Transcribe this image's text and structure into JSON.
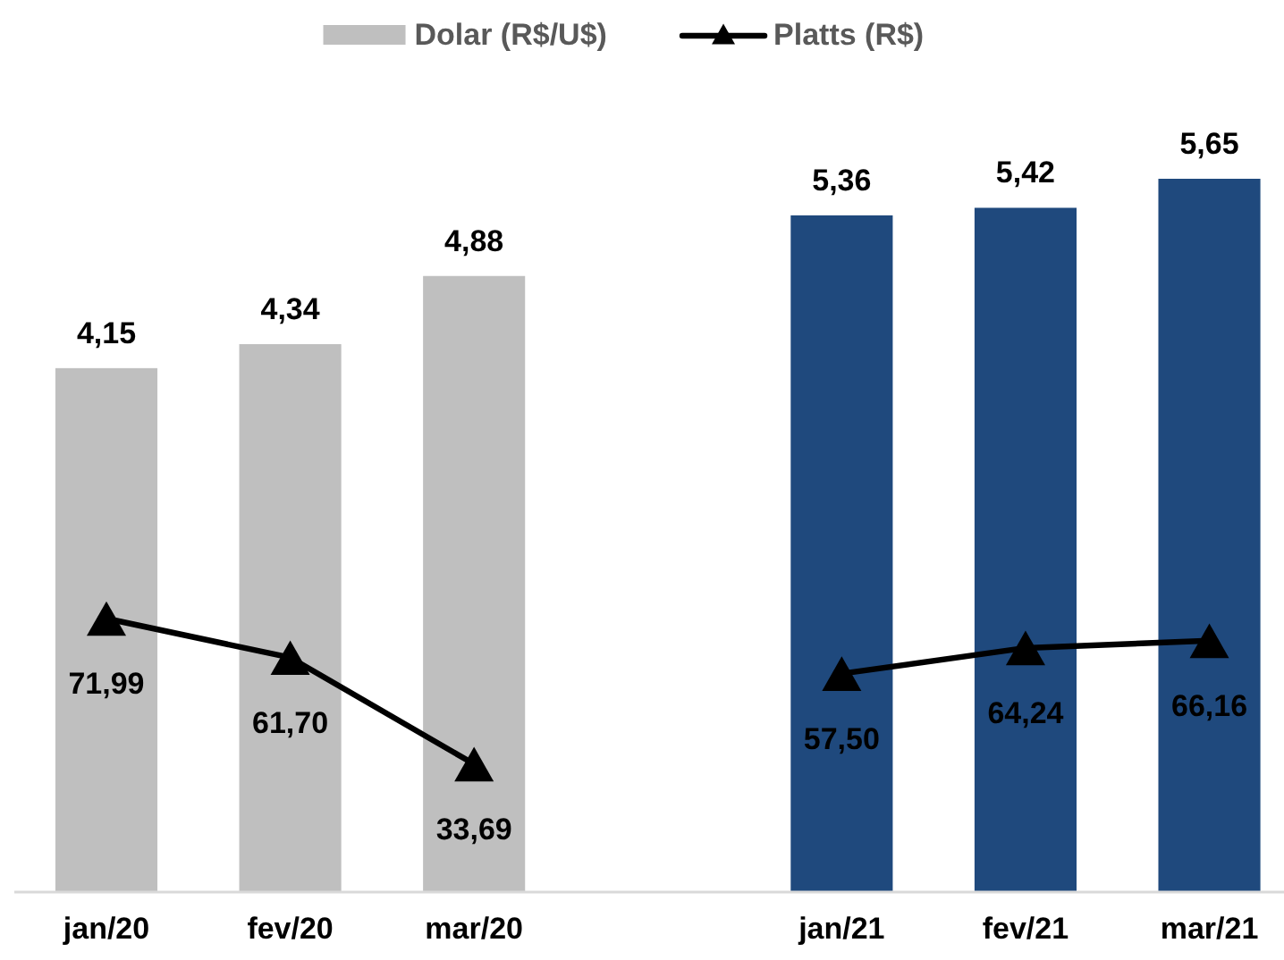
{
  "chart_data": {
    "type": "bar",
    "categories": [
      "jan/20",
      "fev/20",
      "mar/20",
      null,
      "jan/21",
      "fev/21",
      "mar/21"
    ],
    "series": [
      {
        "name": "Dolar (R$/U$)",
        "color": "#bfbfbf",
        "colors": [
          "#bfbfbf",
          "#bfbfbf",
          "#bfbfbf",
          null,
          "#1f497d",
          "#1f497d",
          "#1f497d"
        ],
        "values": [
          4.15,
          4.34,
          4.88,
          null,
          5.36,
          5.42,
          5.65
        ],
        "value_labels": [
          "4,15",
          "4,34",
          "4,88",
          null,
          "5,36",
          "5,42",
          "5,65"
        ]
      },
      {
        "name": "Platts (R$)",
        "type": "line",
        "axis": "y2",
        "color": "#000000",
        "marker": "triangle",
        "line_style": "solid",
        "values": [
          71.99,
          61.7,
          33.69,
          null,
          57.5,
          64.24,
          66.16
        ],
        "value_labels": [
          "71,99",
          "61,70",
          "33,69",
          null,
          "57,50",
          "64,24",
          "66,16"
        ]
      }
    ],
    "tick_labels": "x",
    "legend": "top"
  }
}
